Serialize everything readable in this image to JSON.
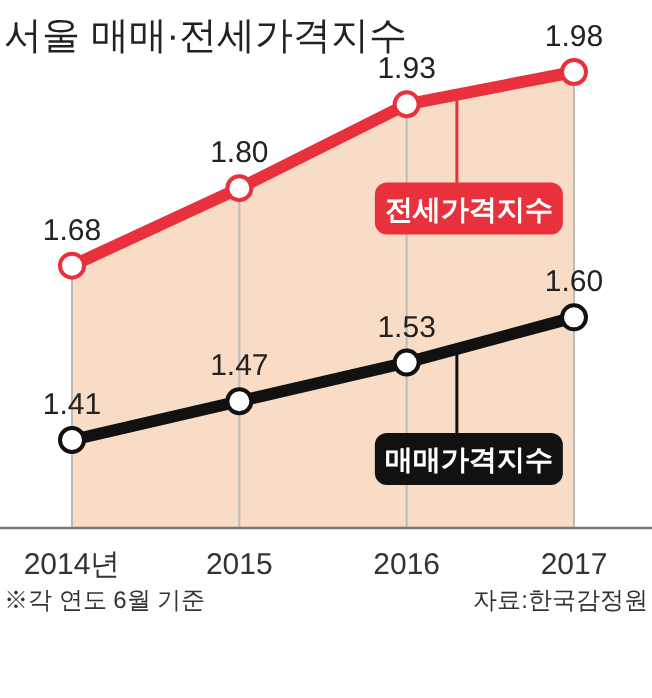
{
  "chart_data": {
    "type": "line",
    "title": "서울 매매·전세가격지수",
    "categories": [
      "2014년",
      "2015",
      "2016",
      "2017"
    ],
    "series": [
      {
        "name": "전세가격지수",
        "type": "area",
        "color": "#e8313c",
        "values": [
          1.68,
          1.8,
          1.93,
          1.98
        ],
        "value_labels": [
          "1.68",
          "1.80",
          "1.93",
          "1.98"
        ]
      },
      {
        "name": "매매가격지수",
        "color": "#111111",
        "values": [
          1.41,
          1.47,
          1.53,
          1.6
        ],
        "value_labels": [
          "1.41",
          "1.47",
          "1.53",
          "1.60"
        ]
      }
    ],
    "tick_labels": "x",
    "marker": "circle",
    "line_style": "solid",
    "legend": false,
    "annotations": [
      "※각 연도 6월 기준",
      "자료:한국감정원"
    ]
  }
}
